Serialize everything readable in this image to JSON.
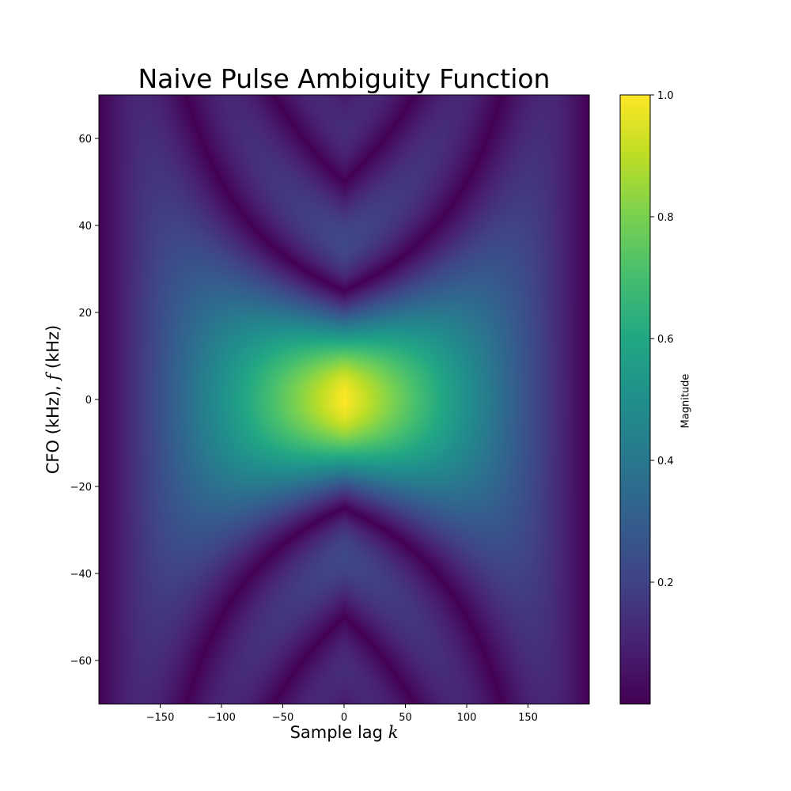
{
  "chart_data": {
    "type": "heatmap",
    "title": "Naive Pulse Ambiguity Function",
    "xlabel_text": "Sample lag ",
    "xlabel_var": "k",
    "ylabel_text": "CFO (kHz), ",
    "ylabel_var": "f",
    "ylabel_unit": " (kHz)",
    "colorbar_label": "Magnitude",
    "colormap": "viridis",
    "xlim": [
      -200,
      200
    ],
    "ylim": [
      -70,
      70
    ],
    "clim": [
      0.0,
      1.0
    ],
    "pulse_length": 200,
    "null_spacing_khz": 25,
    "x_ticks": [
      -150,
      -100,
      -50,
      0,
      50,
      100,
      150
    ],
    "x_tick_labels": [
      "−150",
      "−100",
      "−50",
      "0",
      "50",
      "100",
      "150"
    ],
    "y_ticks": [
      -60,
      -40,
      -20,
      0,
      20,
      40,
      60
    ],
    "y_tick_labels": [
      "−60",
      "−40",
      "−20",
      "0",
      "20",
      "40",
      "60"
    ],
    "cb_ticks": [
      0.2,
      0.4,
      0.6,
      0.8,
      1.0
    ],
    "cb_tick_labels": [
      "0.2",
      "0.4",
      "0.6",
      "0.8",
      "1.0"
    ],
    "peak": {
      "x": 0,
      "y": 0,
      "value": 1.0
    }
  }
}
